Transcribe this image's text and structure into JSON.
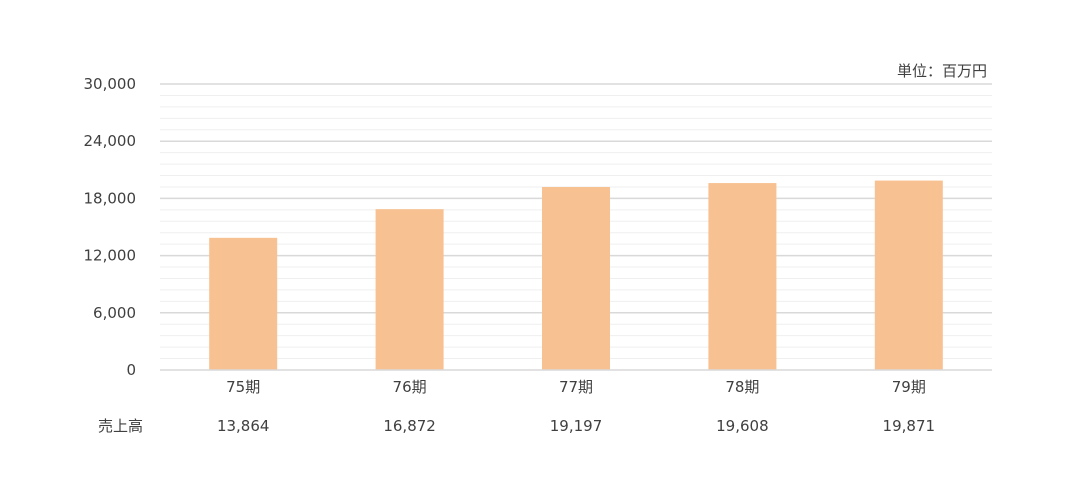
{
  "chart_data": {
    "type": "bar",
    "title": "",
    "unit": "単位：百万円",
    "categories": [
      "75期",
      "76期",
      "77期",
      "78期",
      "79期"
    ],
    "series": [
      {
        "name": "",
        "values": [
          13864,
          16872,
          19197,
          19608,
          19871
        ]
      }
    ],
    "table_row_label": "売上高",
    "table_values": [
      "13,864",
      "16,872",
      "19,197",
      "19,608",
      "19,871"
    ],
    "ylim": [
      0,
      30000
    ],
    "y_ticks": [
      "0",
      "6,000",
      "12,000",
      "18,000",
      "24,000",
      "30,000"
    ],
    "grid": true,
    "bar_color": "#F8C191",
    "grid_color": "#D9D9D9",
    "minor_grid_color": "#EFEFEF"
  }
}
